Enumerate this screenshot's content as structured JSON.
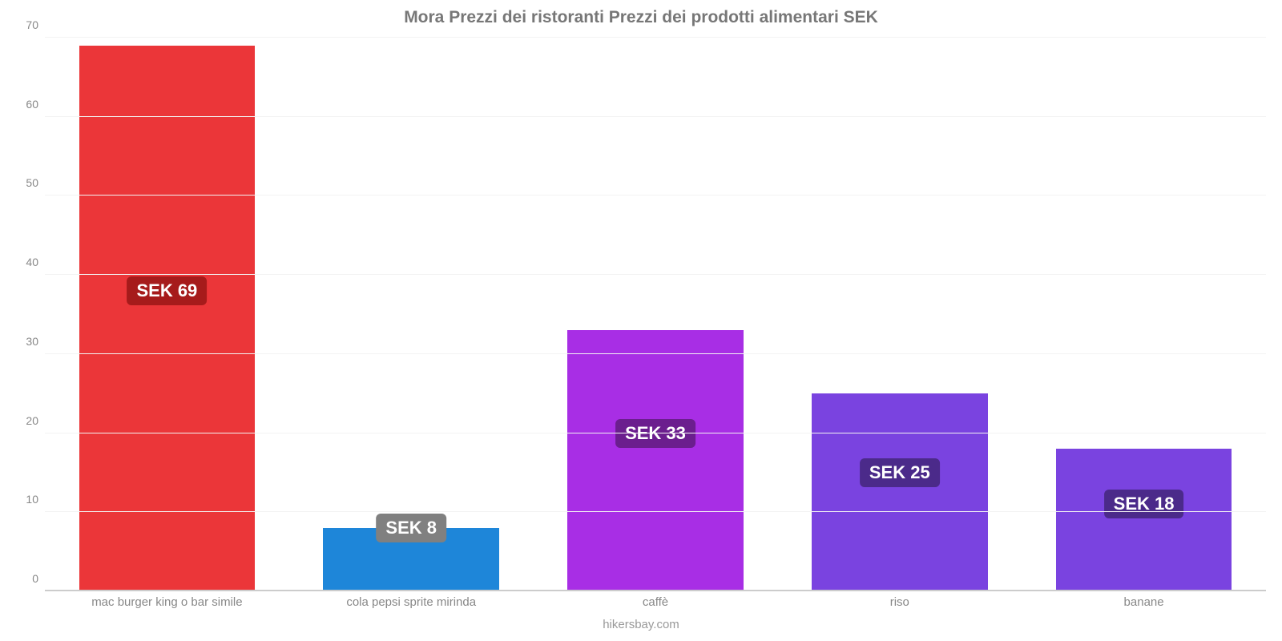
{
  "chart": {
    "type": "bar",
    "title": "Mora Prezzi dei ristoranti Prezzi dei prodotti alimentari SEK",
    "title_fontsize": 21,
    "title_color": "#777777",
    "credit": "hikersbay.com",
    "credit_color": "#999999",
    "background_color": "#ffffff",
    "grid_color": "#f3f3f3",
    "baseline_color": "#cccccc",
    "axis_label_color": "#888888",
    "axis_label_fontsize": 14,
    "value_label_fontsize": 22,
    "value_label_color": "#ffffff",
    "ylim": [
      0,
      70
    ],
    "yticks": [
      0,
      10,
      20,
      30,
      40,
      50,
      60,
      70
    ],
    "bar_width_pct": 72,
    "bars": [
      {
        "category": "mac burger king o bar simile",
        "value": 69,
        "value_label": "SEK 69",
        "bar_color": "#eb3639",
        "badge_color": "#a61b1b",
        "badge_center_value": 38
      },
      {
        "category": "cola pepsi sprite mirinda",
        "value": 8,
        "value_label": "SEK 8",
        "bar_color": "#1e86d9",
        "badge_color": "#808080",
        "badge_center_value": 8
      },
      {
        "category": "caffè",
        "value": 33,
        "value_label": "SEK 33",
        "bar_color": "#a82ee5",
        "badge_color": "#6b1e8e",
        "badge_center_value": 20
      },
      {
        "category": "riso",
        "value": 25,
        "value_label": "SEK 25",
        "bar_color": "#7a43e0",
        "badge_color": "#4b2a8a",
        "badge_center_value": 15
      },
      {
        "category": "banane",
        "value": 18,
        "value_label": "SEK 18",
        "bar_color": "#7a43e0",
        "badge_color": "#4b2a8a",
        "badge_center_value": 11
      }
    ]
  }
}
